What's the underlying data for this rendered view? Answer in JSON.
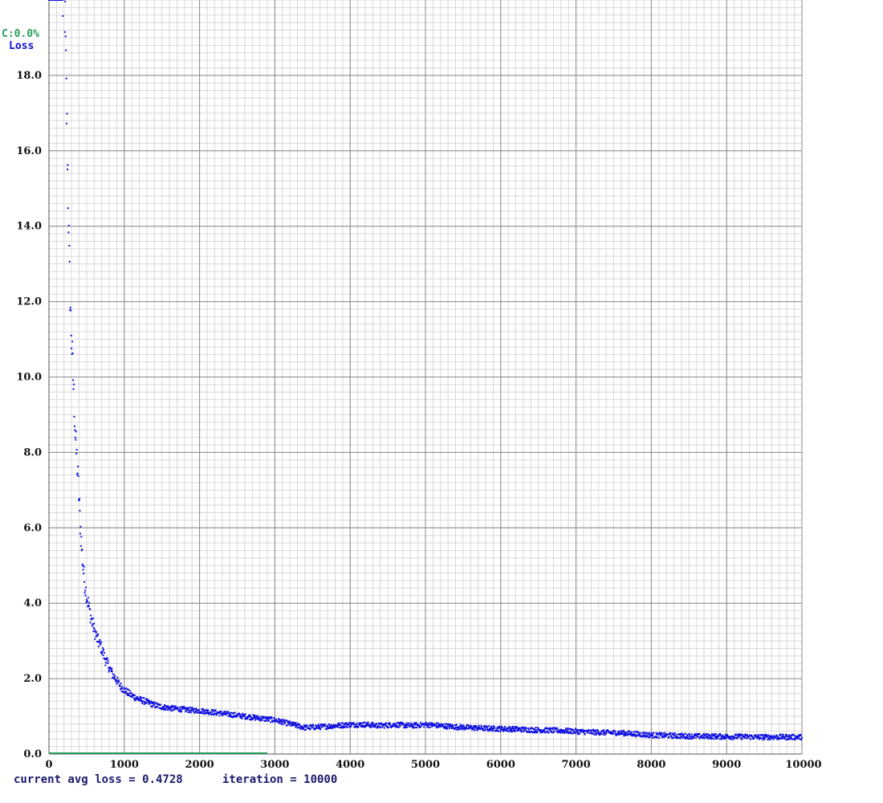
{
  "legend": {
    "map_label": "C:0.0%",
    "loss_label": "Loss"
  },
  "footer": {
    "avg_loss_text": "current avg loss = 0.4728",
    "iteration_text": "iteration = 10000"
  },
  "colors": {
    "loss": "#1010e0",
    "map": "#2a9a5a",
    "grid_major": "#8a8a8a",
    "grid_minor": "#d8d8d8",
    "footer": "#1a1a6e"
  },
  "chart_data": {
    "type": "scatter",
    "title": "",
    "xlabel": "",
    "ylabel": "",
    "xlim": [
      0,
      10000
    ],
    "ylim": [
      0,
      20
    ],
    "grid": true,
    "legend_position": "top-left",
    "x_ticks": [
      "0",
      "1000",
      "2000",
      "3000",
      "4000",
      "5000",
      "6000",
      "7000",
      "8000",
      "9000",
      "10000"
    ],
    "y_ticks": [
      "0.0",
      "2.0",
      "4.0",
      "6.0",
      "8.0",
      "10.0",
      "12.0",
      "14.0",
      "16.0",
      "18.0"
    ],
    "series": [
      {
        "name": "Loss",
        "x": [
          0,
          180,
          210,
          230,
          250,
          270,
          290,
          310,
          330,
          350,
          380,
          410,
          440,
          470,
          500,
          530,
          560,
          600,
          650,
          700,
          750,
          800,
          850,
          900,
          950,
          1000,
          1100,
          1200,
          1300,
          1400,
          1500,
          1600,
          1700,
          1800,
          1900,
          2000,
          2200,
          2400,
          2600,
          2800,
          3000,
          3200,
          3400,
          3600,
          3800,
          4000,
          4200,
          4400,
          4600,
          4800,
          5000,
          5200,
          5400,
          5600,
          5800,
          6000,
          6200,
          6400,
          6600,
          6800,
          7000,
          7200,
          7400,
          7600,
          7800,
          8000,
          8200,
          8400,
          8600,
          8800,
          9000,
          9200,
          9400,
          9600,
          9800,
          10000
        ],
        "y": [
          20.0,
          20.0,
          19.8,
          17.5,
          15.5,
          13.0,
          11.5,
          10.5,
          9.5,
          8.5,
          7.5,
          6.3,
          5.3,
          4.6,
          4.2,
          3.9,
          3.6,
          3.3,
          3.0,
          2.8,
          2.5,
          2.3,
          2.1,
          1.95,
          1.8,
          1.7,
          1.55,
          1.45,
          1.38,
          1.3,
          1.25,
          1.22,
          1.2,
          1.18,
          1.16,
          1.15,
          1.1,
          1.05,
          1.0,
          0.95,
          0.9,
          0.8,
          0.7,
          0.72,
          0.75,
          0.78,
          0.78,
          0.75,
          0.78,
          0.75,
          0.78,
          0.75,
          0.72,
          0.7,
          0.68,
          0.67,
          0.66,
          0.64,
          0.63,
          0.62,
          0.6,
          0.58,
          0.57,
          0.56,
          0.53,
          0.5,
          0.49,
          0.48,
          0.47,
          0.47,
          0.46,
          0.46,
          0.45,
          0.45,
          0.45,
          0.45
        ]
      },
      {
        "name": "C:0.0%",
        "x": [
          0,
          2900
        ],
        "y": [
          0,
          0
        ]
      }
    ]
  }
}
